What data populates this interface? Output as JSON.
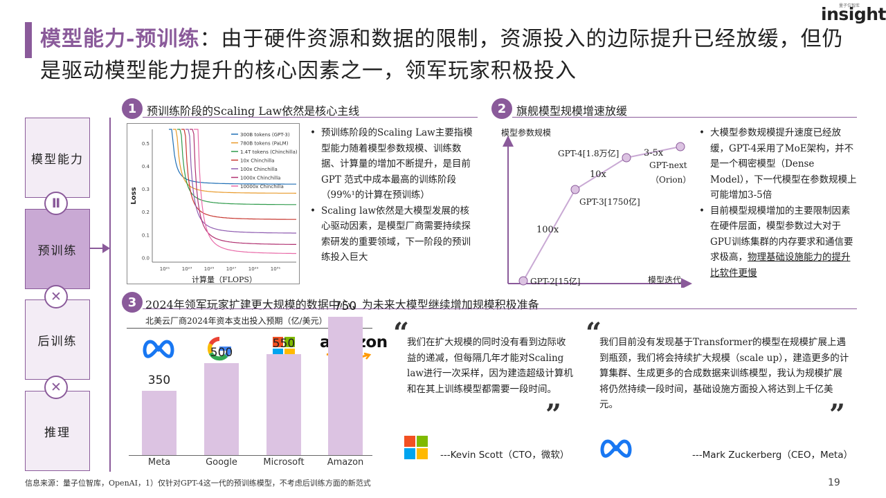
{
  "header": {
    "title_accent": "模型能力-预训练",
    "title_rest": "：由于硬件资源和数据的限制，资源投入的边际提升已经放缓，但仍是驱动模型能力提升的核心因素之一，领军玩家积极投入",
    "logo_small": "量子位智库",
    "logo": "insights"
  },
  "flow": {
    "boxes": [
      "模型能力",
      "预训练",
      "后训练",
      "推理"
    ],
    "connectors": [
      "Ⅱ",
      "✕",
      "✕"
    ]
  },
  "section1": {
    "number": "1",
    "title": "预训练阶段的Scaling Law依然是核心主线",
    "chart_ylabel": "Loss",
    "chart_xlabel": "计算量（FLOPS）",
    "bullets": [
      "预训练阶段的Scaling Law主要指模型能力随着模型参数规模、训练数据、计算量的增加不断提升，是目前GPT 范式中成本最高的训练阶段（99%¹的计算在预训练）",
      "Scaling law依然是大模型发展的核心驱动因素，是模型厂商需要持续探索研发的重要领域，下一阶段的预训练投入巨大"
    ]
  },
  "section2": {
    "number": "2",
    "title": "旗舰模型规模增速放缓",
    "y_axis": "模型参数规模",
    "x_axis": "模型迭代",
    "points": [
      "GPT-2[15亿]",
      "GPT-3[1750亿]",
      "GPT-4[1.8万亿]",
      "GPT-next",
      "（Orion）"
    ],
    "multipliers": [
      "100x",
      "10x",
      "3-5x"
    ],
    "bullet1": "大模型参数规模提升速度已经放缓，GPT-4采用了MoE架构，并不是一个稠密模型（Dense Model），下一代模型在参数规模上可能增加3-5倍",
    "bullet2_plain": "目前模型规模增加的主要限制因素在硬件层面，模型参数过大对于GPU训练集群的内存要求和通信要求极高，",
    "bullet2_underline": "物理基础设施能力的提升比软件更慢"
  },
  "section3": {
    "number": "3",
    "title": "2024年领军玩家扩建更大规模的数据中心，为未来大模型继续增加规模积极准备",
    "chart_title": "北美云厂商2024年资本支出投入预期（亿/美元）",
    "logo_amazon": "amazon",
    "quote1": "我们在扩大规模的同时没有看到边际收益的递减，但每隔几年才能对Scaling law进行一次采样，因为建造超级计算机和在其上训练模型都需要一段时间。",
    "attrib1": "---Kevin Scott（CTO，微软）",
    "quote2": "我们目前没有发现基于Transformer的模型在规模扩展上遇到瓶颈，我们将会持续扩大规模（scale up），建造更多的计算集群、生成更多的合成数据来训练模型，我认为规模扩展将仍然持续一段时间，基础设施方面投入将达到上千亿美元。",
    "attrib2": "---Mark Zuckerberg（CEO，Meta）"
  },
  "chart_data": [
    {
      "type": "line",
      "title": "",
      "xlabel": "计算量（FLOPS）",
      "ylabel": "Loss",
      "x_ticks": [
        "10²¹",
        "10²³",
        "10²⁵",
        "10²⁷",
        "10²⁹",
        "10³¹"
      ],
      "y_ticks": [
        "0.0",
        "0.1",
        "0.2",
        "0.3",
        "0.4",
        "0.5"
      ],
      "ylim": [
        -0.02,
        0.56
      ],
      "series": [
        {
          "name": "300B tokens (GPT-3)",
          "color": "#1f6fb5",
          "floor": 0.32
        },
        {
          "name": "780B tokens (PaLM)",
          "color": "#e89a2a",
          "floor": 0.28
        },
        {
          "name": "1.4T tokens (Chinchilla)",
          "color": "#2e9a4a",
          "floor": 0.23
        },
        {
          "name": "10x Chinchilla",
          "color": "#c7362f",
          "floor": 0.165
        },
        {
          "name": "100x Chinchilla",
          "color": "#8e5bb0",
          "floor": 0.105
        },
        {
          "name": "1000x Chinchilla",
          "color": "#b03070",
          "floor": 0.055
        },
        {
          "name": "10000x Chinchilla",
          "color": "#e86aa8",
          "floor": 0.015
        }
      ]
    },
    {
      "type": "bar",
      "title": "北美云厂商2024年资本支出投入预期（亿/美元）",
      "categories": [
        "Meta",
        "Google",
        "Microsoft",
        "Amazon"
      ],
      "values": [
        350,
        500,
        550,
        750
      ],
      "ylim": [
        0,
        800
      ],
      "color": "#dcc3e2"
    }
  ],
  "footer": {
    "source": "信息来源：量子位智库，OpenAI，1）仅针对GPT-4这一代的预训练模型，不考虑后训练方面的新范式",
    "page": "19"
  }
}
